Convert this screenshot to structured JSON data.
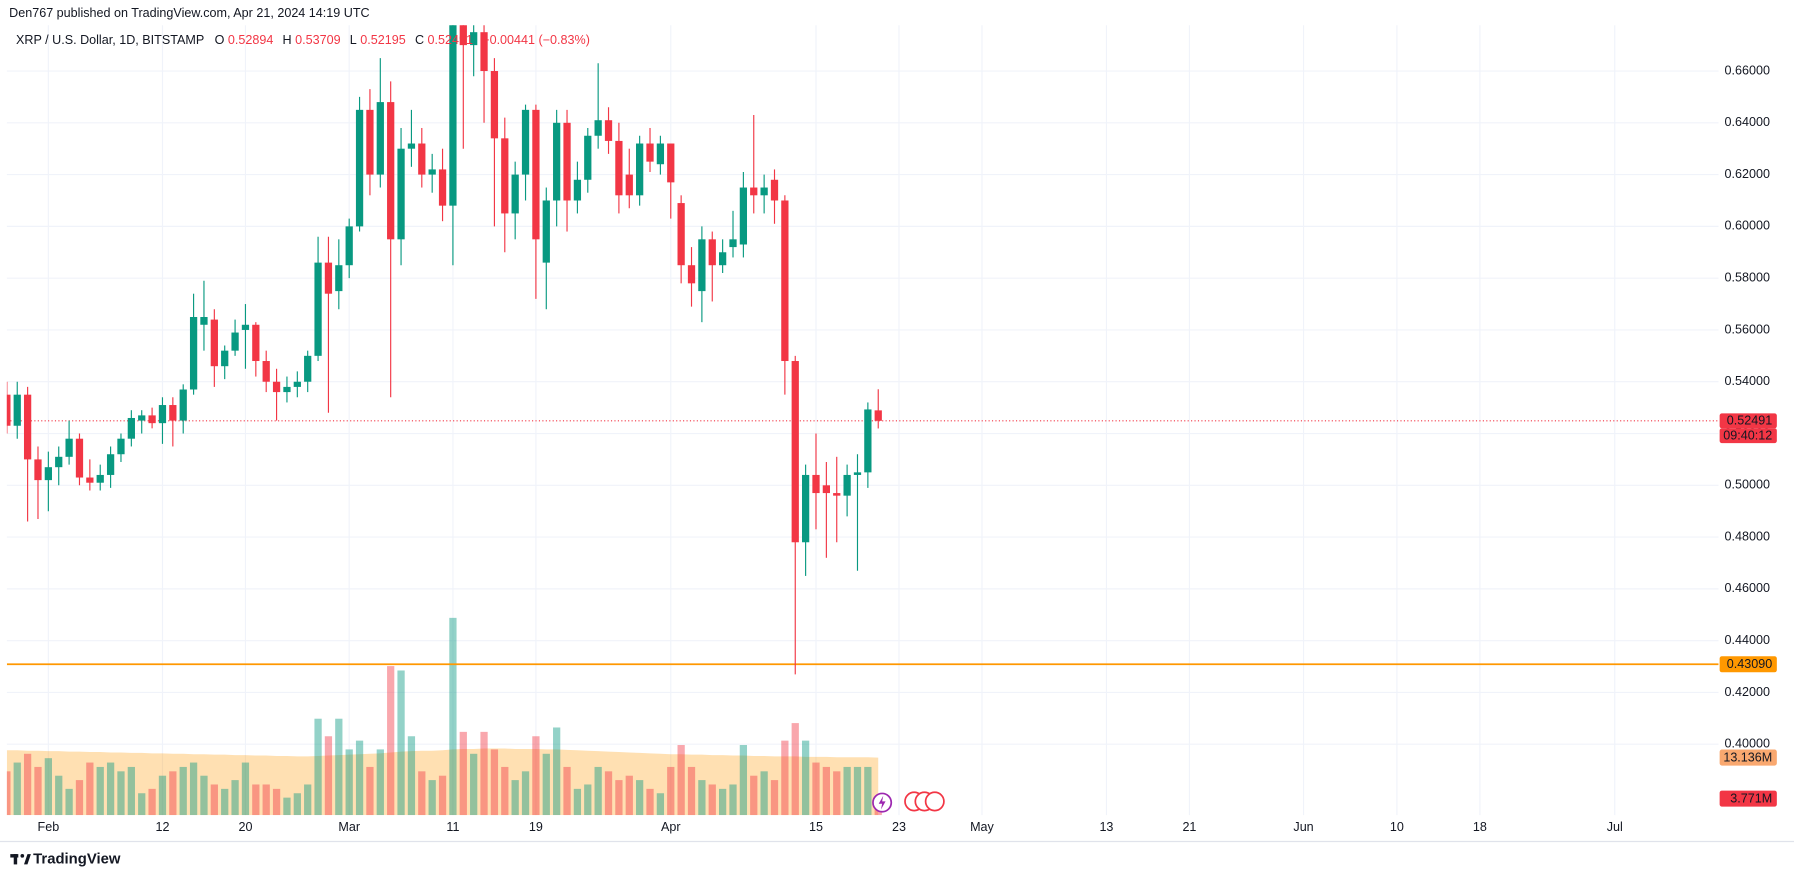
{
  "header": "Den767 published on TradingView.com, Apr 21, 2024 14:19 UTC",
  "footer": "TradingView",
  "chart_data": {
    "type": "candlestick",
    "legend": {
      "title": "XRP / U.S. Dollar, 1D, BITSTAMP",
      "o": "O",
      "h": "H",
      "l": "L",
      "c": "C",
      "change": "−0.00441 (−0.83%)"
    },
    "up_color": "#089981",
    "down_color": "#f23645",
    "x": [
      "01-28",
      "01-29",
      "01-30",
      "01-31",
      "02-01",
      "02-02",
      "02-03",
      "02-04",
      "02-05",
      "02-06",
      "02-07",
      "02-08",
      "02-09",
      "02-10",
      "02-11",
      "02-12",
      "02-13",
      "02-14",
      "02-15",
      "02-16",
      "02-17",
      "02-18",
      "02-19",
      "02-20",
      "02-21",
      "02-22",
      "02-23",
      "02-24",
      "02-25",
      "02-26",
      "02-27",
      "02-28",
      "02-29",
      "03-01",
      "03-02",
      "03-03",
      "03-04",
      "03-05",
      "03-06",
      "03-07",
      "03-08",
      "03-09",
      "03-10",
      "03-11",
      "03-12",
      "03-13",
      "03-14",
      "03-15",
      "03-16",
      "03-17",
      "03-18",
      "03-19",
      "03-20",
      "03-21",
      "03-22",
      "03-23",
      "03-24",
      "03-25",
      "03-26",
      "03-27",
      "03-28",
      "03-29",
      "03-30",
      "03-31",
      "04-01",
      "04-02",
      "04-03",
      "04-04",
      "04-05",
      "04-06",
      "04-07",
      "04-08",
      "04-09",
      "04-10",
      "04-11",
      "04-12",
      "04-13",
      "04-14",
      "04-15",
      "04-16",
      "04-17",
      "04-18",
      "04-19",
      "04-20",
      "04-21"
    ],
    "open": [
      0.535,
      0.523,
      0.535,
      0.51,
      0.502,
      0.507,
      0.511,
      0.518,
      0.503,
      0.501,
      0.504,
      0.512,
      0.518,
      0.525,
      0.527,
      0.524,
      0.531,
      0.525,
      0.537,
      0.562,
      0.564,
      0.546,
      0.552,
      0.56,
      0.562,
      0.548,
      0.54,
      0.536,
      0.538,
      0.54,
      0.55,
      0.586,
      0.575,
      0.585,
      0.6,
      0.645,
      0.62,
      0.648,
      0.595,
      0.63,
      0.632,
      0.62,
      0.622,
      0.608,
      0.678,
      0.67,
      0.675,
      0.66,
      0.634,
      0.605,
      0.62,
      0.645,
      0.586,
      0.61,
      0.64,
      0.61,
      0.618,
      0.635,
      0.641,
      0.633,
      0.62,
      0.612,
      0.632,
      0.624,
      0.632,
      0.609,
      0.585,
      0.575,
      0.595,
      0.585,
      0.592,
      0.593,
      0.615,
      0.612,
      0.618,
      0.61,
      0.548,
      0.478,
      0.504,
      0.5,
      0.497,
      0.496,
      0.504,
      0.505,
      0.52894
    ],
    "high": [
      0.54,
      0.54,
      0.538,
      0.515,
      0.513,
      0.515,
      0.525,
      0.52,
      0.51,
      0.508,
      0.515,
      0.52,
      0.529,
      0.529,
      0.53,
      0.534,
      0.534,
      0.539,
      0.574,
      0.579,
      0.568,
      0.554,
      0.564,
      0.57,
      0.563,
      0.552,
      0.545,
      0.542,
      0.544,
      0.552,
      0.596,
      0.596,
      0.595,
      0.603,
      0.65,
      0.653,
      0.665,
      0.656,
      0.638,
      0.645,
      0.638,
      0.628,
      0.63,
      0.7,
      0.69,
      0.72,
      0.682,
      0.665,
      0.642,
      0.625,
      0.647,
      0.647,
      0.615,
      0.645,
      0.645,
      0.625,
      0.638,
      0.663,
      0.646,
      0.64,
      0.63,
      0.635,
      0.638,
      0.635,
      0.632,
      0.612,
      0.592,
      0.6,
      0.598,
      0.595,
      0.606,
      0.621,
      0.643,
      0.62,
      0.622,
      0.612,
      0.55,
      0.508,
      0.52,
      0.509,
      0.511,
      0.508,
      0.512,
      0.532,
      0.53709
    ],
    "low": [
      0.52,
      0.518,
      0.486,
      0.487,
      0.49,
      0.5,
      0.508,
      0.5,
      0.498,
      0.498,
      0.499,
      0.509,
      0.515,
      0.52,
      0.522,
      0.516,
      0.515,
      0.52,
      0.535,
      0.552,
      0.538,
      0.541,
      0.55,
      0.545,
      0.542,
      0.536,
      0.525,
      0.532,
      0.534,
      0.536,
      0.548,
      0.528,
      0.568,
      0.58,
      0.598,
      0.612,
      0.615,
      0.534,
      0.585,
      0.623,
      0.615,
      0.613,
      0.602,
      0.585,
      0.63,
      0.658,
      0.64,
      0.6,
      0.59,
      0.595,
      0.61,
      0.572,
      0.568,
      0.6,
      0.598,
      0.605,
      0.613,
      0.63,
      0.628,
      0.605,
      0.607,
      0.608,
      0.621,
      0.62,
      0.603,
      0.578,
      0.569,
      0.563,
      0.571,
      0.582,
      0.588,
      0.588,
      0.605,
      0.605,
      0.601,
      0.535,
      0.427,
      0.465,
      0.483,
      0.472,
      0.478,
      0.488,
      0.467,
      0.499,
      0.52195
    ],
    "close": [
      0.523,
      0.535,
      0.51,
      0.502,
      0.507,
      0.511,
      0.518,
      0.503,
      0.501,
      0.504,
      0.512,
      0.518,
      0.526,
      0.527,
      0.524,
      0.531,
      0.525,
      0.537,
      0.565,
      0.565,
      0.546,
      0.552,
      0.559,
      0.562,
      0.548,
      0.54,
      0.536,
      0.538,
      0.54,
      0.55,
      0.586,
      0.574,
      0.585,
      0.6,
      0.645,
      0.62,
      0.648,
      0.595,
      0.63,
      0.632,
      0.62,
      0.622,
      0.608,
      0.678,
      0.67,
      0.675,
      0.66,
      0.634,
      0.605,
      0.62,
      0.645,
      0.595,
      0.61,
      0.64,
      0.61,
      0.618,
      0.635,
      0.641,
      0.633,
      0.612,
      0.612,
      0.632,
      0.625,
      0.632,
      0.617,
      0.585,
      0.578,
      0.595,
      0.585,
      0.59,
      0.595,
      0.615,
      0.612,
      0.615,
      0.61,
      0.548,
      0.478,
      0.504,
      0.497,
      0.497,
      0.496,
      0.504,
      0.505,
      0.5293,
      0.52491
    ],
    "volume": {
      "ylim": [
        0,
        47
      ],
      "up_color": "#08998170",
      "down_color": "#f2364570",
      "values": [
        10,
        12,
        14,
        11,
        13,
        9,
        6,
        8,
        12,
        11,
        12,
        10,
        11,
        5,
        6,
        9,
        10,
        11,
        12,
        9,
        7,
        6,
        8,
        12,
        7,
        7,
        6,
        4,
        5,
        7,
        22,
        18,
        22,
        15,
        17,
        11,
        15,
        34,
        33,
        18,
        10,
        8,
        9,
        45,
        19,
        14,
        19,
        15,
        11,
        8,
        10,
        18,
        14,
        20,
        11,
        6,
        7,
        11,
        10,
        8,
        9,
        8,
        6,
        5,
        11,
        16,
        11,
        8,
        7,
        6,
        7,
        16,
        9,
        10,
        8,
        17,
        21,
        17,
        12,
        11,
        10,
        11,
        11,
        11,
        3.771
      ],
      "value_labels": [
        null,
        null,
        null,
        null,
        null,
        null,
        null,
        null,
        null,
        null,
        null,
        null,
        null,
        null,
        null,
        null,
        null,
        null,
        null,
        null,
        null,
        null,
        null,
        null,
        null,
        null,
        null,
        null,
        null,
        null,
        null,
        null,
        null,
        null,
        null,
        null,
        null,
        null,
        null,
        null,
        null,
        null,
        null,
        null,
        null,
        null,
        null,
        null,
        null,
        null,
        null,
        null,
        null,
        null,
        null,
        null,
        null,
        null,
        null,
        null,
        null,
        null,
        null,
        null,
        null,
        null,
        null,
        null,
        null,
        null,
        null,
        null,
        null,
        null,
        null,
        null,
        null,
        null,
        null,
        null,
        null,
        null,
        null,
        null,
        "3.771M"
      ]
    },
    "volume_ma": {
      "color": "#ff98004d",
      "label_color": "#f9a86f",
      "values": [
        14.8,
        14.8,
        14.7,
        14.7,
        14.6,
        14.6,
        14.5,
        14.5,
        14.4,
        14.4,
        14.3,
        14.3,
        14.2,
        14.2,
        14.1,
        14.1,
        14.0,
        14.0,
        13.9,
        13.9,
        13.8,
        13.8,
        13.7,
        13.7,
        13.6,
        13.6,
        13.5,
        13.5,
        13.4,
        13.4,
        13.5,
        13.6,
        13.7,
        13.8,
        13.9,
        14.0,
        14.1,
        14.3,
        14.5,
        14.6,
        14.7,
        14.7,
        14.8,
        15.0,
        15.1,
        15.1,
        15.2,
        15.2,
        15.2,
        15.1,
        15.1,
        15.1,
        15.0,
        15.0,
        14.9,
        14.8,
        14.7,
        14.6,
        14.5,
        14.4,
        14.3,
        14.2,
        14.1,
        14.0,
        13.9,
        13.9,
        13.8,
        13.8,
        13.7,
        13.7,
        13.6,
        13.6,
        13.5,
        13.5,
        13.4,
        13.4,
        13.4,
        13.3,
        13.3,
        13.3,
        13.2,
        13.2,
        13.2,
        13.2,
        13.136
      ],
      "value_labels": [
        null,
        null,
        null,
        null,
        null,
        null,
        null,
        null,
        null,
        null,
        null,
        null,
        null,
        null,
        null,
        null,
        null,
        null,
        null,
        null,
        null,
        null,
        null,
        null,
        null,
        null,
        null,
        null,
        null,
        null,
        null,
        null,
        null,
        null,
        null,
        null,
        null,
        null,
        null,
        null,
        null,
        null,
        null,
        null,
        null,
        null,
        null,
        null,
        null,
        null,
        null,
        null,
        null,
        null,
        null,
        null,
        null,
        null,
        null,
        null,
        null,
        null,
        null,
        null,
        null,
        null,
        null,
        null,
        null,
        null,
        null,
        null,
        null,
        null,
        null,
        null,
        null,
        null,
        null,
        null,
        null,
        null,
        null,
        null,
        "13.136M"
      ]
    },
    "countdown": "09:40:12",
    "hline": {
      "value": 0.4309,
      "label": "0.43090",
      "color": "#ff9800"
    },
    "xlim": [
      "01-28",
      "07-11"
    ],
    "xticks": [
      {
        "value": "02-01",
        "label": "Feb"
      },
      {
        "value": "02-12",
        "label": "12"
      },
      {
        "value": "02-20",
        "label": "20"
      },
      {
        "value": "03-01",
        "label": "Mar"
      },
      {
        "value": "03-11",
        "label": "11"
      },
      {
        "value": "03-19",
        "label": "19"
      },
      {
        "value": "04-01",
        "label": "Apr"
      },
      {
        "value": "04-15",
        "label": "15"
      },
      {
        "value": "04-23",
        "label": "23"
      },
      {
        "value": "05-01",
        "label": "May"
      },
      {
        "value": "05-13",
        "label": "13"
      },
      {
        "value": "05-21",
        "label": "21"
      },
      {
        "value": "06-01",
        "label": "Jun"
      },
      {
        "value": "06-10",
        "label": "10"
      },
      {
        "value": "06-18",
        "label": "18"
      },
      {
        "value": "07-01",
        "label": "Jul"
      }
    ],
    "ylim": [
      0.3726,
      0.6777
    ],
    "yticks": [
      {
        "value": 0.4,
        "label": "0.40000"
      },
      {
        "value": 0.42,
        "label": "0.42000"
      },
      {
        "value": 0.44,
        "label": "0.44000"
      },
      {
        "value": 0.46,
        "label": "0.46000"
      },
      {
        "value": 0.48,
        "label": "0.48000"
      },
      {
        "value": 0.5,
        "label": "0.50000"
      },
      {
        "value": 0.52,
        "label": "0.52000"
      },
      {
        "value": 0.54,
        "label": "0.54000"
      },
      {
        "value": 0.56,
        "label": "0.56000"
      },
      {
        "value": 0.58,
        "label": "0.58000"
      },
      {
        "value": 0.6,
        "label": "0.60000"
      },
      {
        "value": 0.62,
        "label": "0.62000"
      },
      {
        "value": 0.64,
        "label": "0.64000"
      },
      {
        "value": 0.66,
        "label": "0.66000"
      }
    ],
    "grid": true
  }
}
